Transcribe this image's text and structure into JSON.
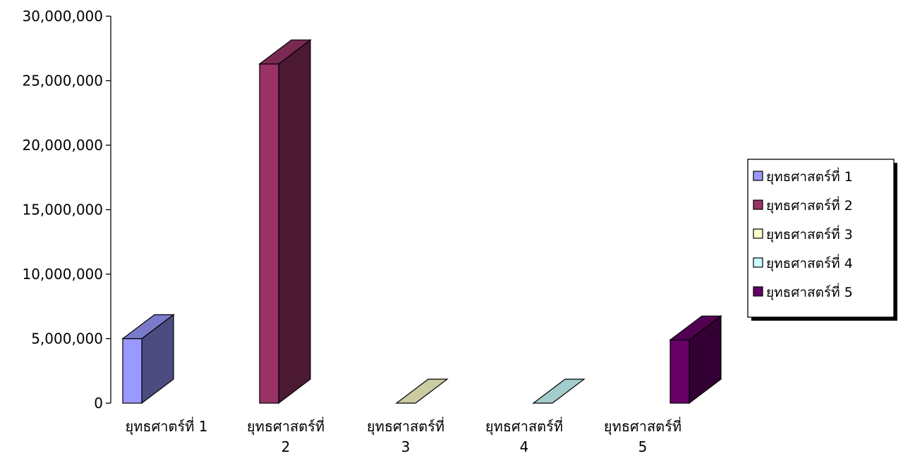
{
  "chart_data": {
    "type": "bar",
    "categories": [
      [
        "ยุทธศาตร์ที่ 1"
      ],
      [
        "ยุทธศาสตร์ที่",
        "2"
      ],
      [
        "ยุทธศาสตร์ที่",
        "3"
      ],
      [
        "ยุทธศาสตร์ที่",
        "4"
      ],
      [
        "ยุทธศาสตร์ที่",
        "5"
      ]
    ],
    "values": [
      5000000,
      26300000,
      0,
      0,
      4900000
    ],
    "ylim": [
      0,
      30000000
    ],
    "yticks": [
      0,
      5000000,
      10000000,
      15000000,
      20000000,
      25000000,
      30000000
    ],
    "ytick_labels": [
      "0",
      "5,000,000",
      "10,000,000",
      "15,000,000",
      "20,000,000",
      "25,000,000",
      "30,000,000"
    ],
    "grid": false,
    "style": "3d-column",
    "legend_position": "right",
    "legend": [
      "ยุทธศาสตร์ที่ 1",
      "ยุทธศาสตร์ที่ 2",
      "ยุทธศาสตร์ที่ 3",
      "ยุทธศาสตร์ที่ 4",
      "ยุทธศาสตร์ที่ 5"
    ],
    "colors": [
      {
        "front": "#9999ff",
        "side": "#4c4c80",
        "top": "#7a7acc"
      },
      {
        "front": "#993366",
        "side": "#4c1933",
        "top": "#7a2952"
      },
      {
        "front": "#ffffcc",
        "side": "#808066",
        "top": "#cccca3"
      },
      {
        "front": "#ccffff",
        "side": "#668080",
        "top": "#a3cccc"
      },
      {
        "front": "#660066",
        "side": "#330033",
        "top": "#520052"
      }
    ]
  }
}
